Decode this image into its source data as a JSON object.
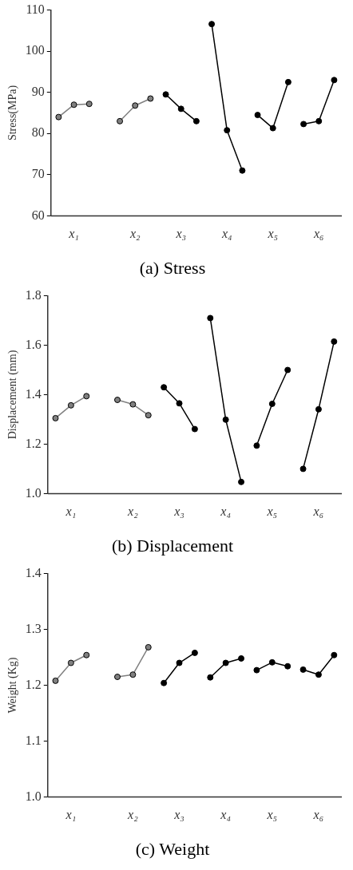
{
  "chart_data": [
    {
      "type": "line",
      "title": "(a) Stress",
      "ylabel": "Stress(MPa)",
      "categories": [
        null,
        "x₁",
        null,
        null,
        null,
        "x₂",
        null,
        null,
        "x₃",
        null,
        null,
        "x₄",
        null,
        null,
        "x₅",
        null,
        null,
        "x₆",
        null
      ],
      "ylim": [
        60,
        110
      ],
      "yticks": [
        60,
        70,
        80,
        90,
        100,
        110
      ],
      "grid": false,
      "legend": false,
      "marker": "circle",
      "line_style": "solid",
      "series": [
        {
          "color": "#808080",
          "values": [
            84.0,
            87.0,
            87.2,
            null,
            null,
            null,
            null,
            null,
            null,
            null,
            null,
            null,
            null,
            null,
            null,
            null,
            null,
            null,
            null
          ]
        },
        {
          "color": "#808080",
          "values": [
            null,
            null,
            null,
            null,
            83.0,
            86.8,
            88.5,
            null,
            null,
            null,
            null,
            null,
            null,
            null,
            null,
            null,
            null,
            null,
            null
          ]
        },
        {
          "color": "#000000",
          "values": [
            null,
            null,
            null,
            null,
            null,
            null,
            null,
            89.5,
            86.0,
            83.0,
            null,
            null,
            null,
            null,
            null,
            null,
            null,
            null,
            null
          ]
        },
        {
          "color": "#000000",
          "values": [
            null,
            null,
            null,
            null,
            null,
            null,
            null,
            null,
            null,
            null,
            106.6,
            80.8,
            71.0,
            null,
            null,
            null,
            null,
            null,
            null
          ]
        },
        {
          "color": "#000000",
          "values": [
            null,
            null,
            null,
            null,
            null,
            null,
            null,
            null,
            null,
            null,
            null,
            null,
            null,
            84.5,
            81.3,
            92.5,
            null,
            null,
            null
          ]
        },
        {
          "color": "#000000",
          "values": [
            null,
            null,
            null,
            null,
            null,
            null,
            null,
            null,
            null,
            null,
            null,
            null,
            null,
            null,
            null,
            null,
            82.3,
            83.0,
            93.0
          ]
        }
      ]
    },
    {
      "type": "line",
      "title": "(b) Displacement",
      "ylabel": "Displacement (mm)",
      "categories": [
        null,
        "x₁",
        null,
        null,
        null,
        "x₂",
        null,
        null,
        "x₃",
        null,
        null,
        "x₄",
        null,
        null,
        "x₅",
        null,
        null,
        "x₆",
        null
      ],
      "ylim": [
        1.0,
        1.8
      ],
      "yticks": [
        {
          "value": 1.0,
          "label": "1.0"
        },
        1.2,
        1.4,
        1.6,
        1.8
      ],
      "grid": false,
      "legend": false,
      "marker": "circle",
      "line_style": "solid",
      "series": [
        {
          "color": "#808080",
          "values": [
            1.305,
            1.357,
            1.394,
            null,
            null,
            null,
            null,
            null,
            null,
            null,
            null,
            null,
            null,
            null,
            null,
            null,
            null,
            null,
            null
          ]
        },
        {
          "color": "#808080",
          "values": [
            null,
            null,
            null,
            null,
            1.379,
            1.361,
            1.317,
            null,
            null,
            null,
            null,
            null,
            null,
            null,
            null,
            null,
            null,
            null,
            null
          ]
        },
        {
          "color": "#000000",
          "values": [
            null,
            null,
            null,
            null,
            null,
            null,
            null,
            1.43,
            1.365,
            1.261,
            null,
            null,
            null,
            null,
            null,
            null,
            null,
            null,
            null
          ]
        },
        {
          "color": "#000000",
          "values": [
            null,
            null,
            null,
            null,
            null,
            null,
            null,
            null,
            null,
            null,
            1.71,
            1.299,
            1.047,
            null,
            null,
            null,
            null,
            null,
            null
          ]
        },
        {
          "color": "#000000",
          "values": [
            null,
            null,
            null,
            null,
            null,
            null,
            null,
            null,
            null,
            null,
            null,
            null,
            null,
            1.194,
            1.363,
            1.5,
            null,
            null,
            null
          ]
        },
        {
          "color": "#000000",
          "values": [
            null,
            null,
            null,
            null,
            null,
            null,
            null,
            null,
            null,
            null,
            null,
            null,
            null,
            null,
            null,
            null,
            1.1,
            1.341,
            1.615
          ]
        }
      ]
    },
    {
      "type": "line",
      "title": "(c) Weight",
      "ylabel": "Weight (Kg)",
      "categories": [
        null,
        "x₁",
        null,
        null,
        null,
        "x₂",
        null,
        null,
        "x₃",
        null,
        null,
        "x₄",
        null,
        null,
        "x₅",
        null,
        null,
        "x₆",
        null
      ],
      "ylim": [
        1.0,
        1.4
      ],
      "yticks": [
        {
          "value": 1.0,
          "label": "1.0"
        },
        1.1,
        1.2,
        1.3,
        1.4
      ],
      "grid": false,
      "legend": false,
      "marker": "circle",
      "line_style": "solid",
      "series": [
        {
          "color": "#808080",
          "values": [
            1.208,
            1.24,
            1.254,
            null,
            null,
            null,
            null,
            null,
            null,
            null,
            null,
            null,
            null,
            null,
            null,
            null,
            null,
            null,
            null
          ]
        },
        {
          "color": "#808080",
          "values": [
            null,
            null,
            null,
            null,
            1.215,
            1.219,
            1.268,
            null,
            null,
            null,
            null,
            null,
            null,
            null,
            null,
            null,
            null,
            null,
            null
          ]
        },
        {
          "color": "#000000",
          "values": [
            null,
            null,
            null,
            null,
            null,
            null,
            null,
            1.204,
            1.24,
            1.258,
            null,
            null,
            null,
            null,
            null,
            null,
            null,
            null,
            null
          ]
        },
        {
          "color": "#000000",
          "values": [
            null,
            null,
            null,
            null,
            null,
            null,
            null,
            null,
            null,
            null,
            1.214,
            1.24,
            1.248,
            null,
            null,
            null,
            null,
            null,
            null
          ]
        },
        {
          "color": "#000000",
          "values": [
            null,
            null,
            null,
            null,
            null,
            null,
            null,
            null,
            null,
            null,
            null,
            null,
            null,
            1.227,
            1.241,
            1.234,
            null,
            null,
            null
          ]
        },
        {
          "color": "#000000",
          "values": [
            null,
            null,
            null,
            null,
            null,
            null,
            null,
            null,
            null,
            null,
            null,
            null,
            null,
            null,
            null,
            null,
            1.228,
            1.219,
            1.254
          ]
        }
      ]
    }
  ]
}
